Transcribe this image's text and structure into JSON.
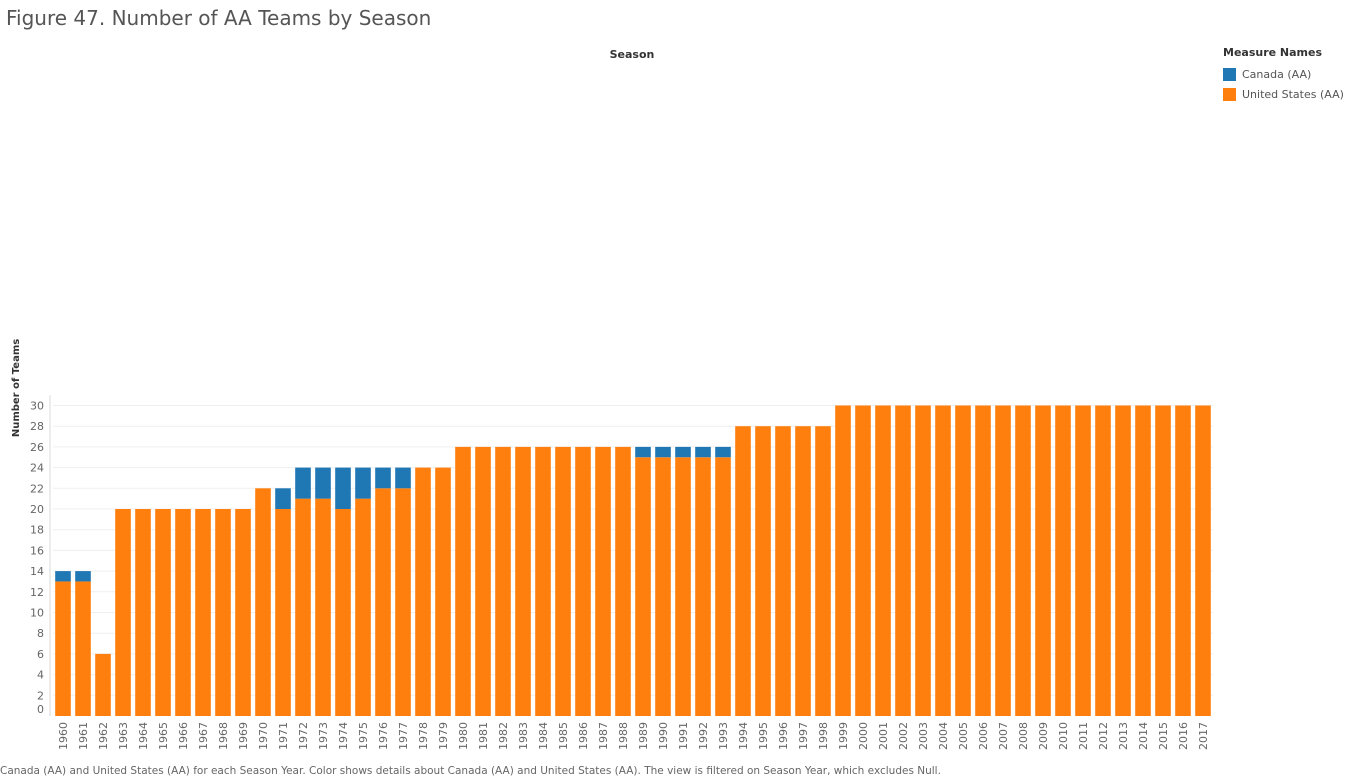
{
  "page": {
    "title": "Figure 47. Number of AA Teams by Season",
    "caption": "Canada (AA) and United States (AA) for each Season Year.  Color shows details about Canada (AA) and United States (AA). The view is filtered on Season Year, which excludes Null."
  },
  "legend": {
    "title": "Measure Names",
    "items": [
      {
        "label": "Canada (AA)",
        "color": "#1f77b4"
      },
      {
        "label": "United States (AA)",
        "color": "#ff7f0e"
      }
    ]
  },
  "chart_data": {
    "type": "bar",
    "stacked": true,
    "title": "Figure 47. Number of AA Teams by Season",
    "column_header": "Season",
    "xlabel": "",
    "ylabel": "Number of Teams",
    "ylim": [
      0,
      31
    ],
    "yticks": [
      0,
      2,
      4,
      6,
      8,
      10,
      12,
      14,
      16,
      18,
      20,
      22,
      24,
      26,
      28,
      30
    ],
    "grid": "horizontal",
    "legend_position": "top-right",
    "categories": [
      "1960",
      "1961",
      "1962",
      "1963",
      "1964",
      "1965",
      "1966",
      "1967",
      "1968",
      "1969",
      "1970",
      "1971",
      "1972",
      "1973",
      "1974",
      "1975",
      "1976",
      "1977",
      "1978",
      "1979",
      "1980",
      "1981",
      "1982",
      "1983",
      "1984",
      "1985",
      "1986",
      "1987",
      "1988",
      "1989",
      "1990",
      "1991",
      "1992",
      "1993",
      "1994",
      "1995",
      "1996",
      "1997",
      "1998",
      "1999",
      "2000",
      "2001",
      "2002",
      "2003",
      "2004",
      "2005",
      "2006",
      "2007",
      "2008",
      "2009",
      "2010",
      "2011",
      "2012",
      "2013",
      "2014",
      "2015",
      "2016",
      "2017"
    ],
    "series": [
      {
        "name": "United States (AA)",
        "color": "#ff7f0e",
        "values": [
          13,
          13,
          6,
          20,
          20,
          20,
          20,
          20,
          20,
          20,
          22,
          20,
          21,
          21,
          20,
          21,
          22,
          22,
          24,
          24,
          26,
          26,
          26,
          26,
          26,
          26,
          26,
          26,
          26,
          25,
          25,
          25,
          25,
          25,
          28,
          28,
          28,
          28,
          28,
          30,
          30,
          30,
          30,
          30,
          30,
          30,
          30,
          30,
          30,
          30,
          30,
          30,
          30,
          30,
          30,
          30,
          30,
          30
        ]
      },
      {
        "name": "Canada (AA)",
        "color": "#1f77b4",
        "values": [
          1,
          1,
          0,
          0,
          0,
          0,
          0,
          0,
          0,
          0,
          0,
          2,
          3,
          3,
          4,
          3,
          2,
          2,
          0,
          0,
          0,
          0,
          0,
          0,
          0,
          0,
          0,
          0,
          0,
          1,
          1,
          1,
          1,
          1,
          0,
          0,
          0,
          0,
          0,
          0,
          0,
          0,
          0,
          0,
          0,
          0,
          0,
          0,
          0,
          0,
          0,
          0,
          0,
          0,
          0,
          0,
          0,
          0
        ]
      }
    ]
  }
}
